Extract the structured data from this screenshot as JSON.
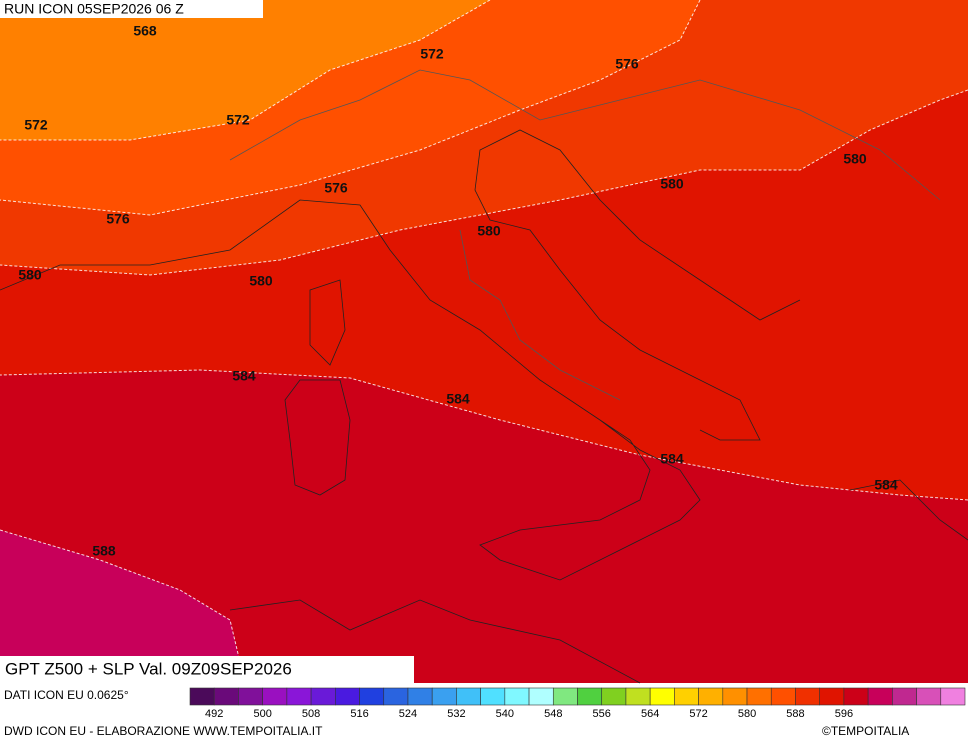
{
  "header": {
    "run": "RUN ICON 05SEP2026 06 Z"
  },
  "contour_labels": [
    568,
    572,
    576,
    572,
    572,
    576,
    580,
    580,
    576,
    580,
    580,
    580,
    584,
    584,
    584,
    584,
    588
  ],
  "footer": {
    "title": "GPT Z500 + SLP Val. 09Z09SEP2026",
    "source": "DATI ICON EU 0.0625°",
    "credit": "DWD ICON EU - ELABORAZIONE WWW.TEMPOITALIA.IT",
    "copyright": "©TEMPOITALIA"
  },
  "colorbar": {
    "ticks": [
      492,
      500,
      508,
      516,
      524,
      532,
      540,
      548,
      556,
      564,
      572,
      580,
      588,
      596
    ],
    "colors": [
      "#4b0a5a",
      "#6a0a7a",
      "#80109a",
      "#9a10c0",
      "#8a16d8",
      "#6a1ad8",
      "#4a1ae0",
      "#2040e0",
      "#2a64e0",
      "#3080e6",
      "#3aa0f0",
      "#40c0f8",
      "#50e0ff",
      "#80f8ff",
      "#b0ffff",
      "#80e880",
      "#50d040",
      "#80d020",
      "#c0e020",
      "#ffff00",
      "#ffd000",
      "#ffb000",
      "#ff9000",
      "#ff7000",
      "#ff5000",
      "#f03000",
      "#e01400",
      "#cc0018",
      "#c8005a",
      "#c02890",
      "#d850b8",
      "#f080e0"
    ]
  }
}
